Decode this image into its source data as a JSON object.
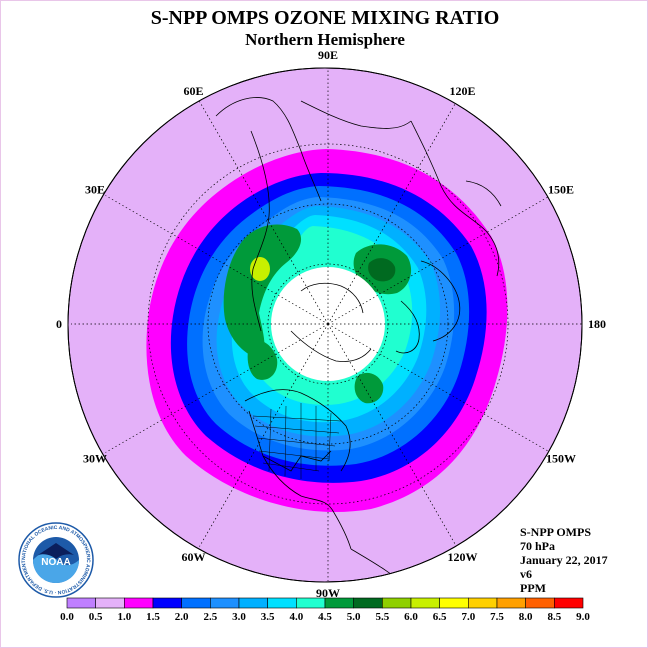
{
  "title": "S-NPP OMPS OZONE MIXING RATIO",
  "subtitle": "Northern Hemisphere",
  "longitude_labels": [
    {
      "lon": 90,
      "label": "90E"
    },
    {
      "lon": 60,
      "label": "60E"
    },
    {
      "lon": 30,
      "label": "30E"
    },
    {
      "lon": 0,
      "label": "0"
    },
    {
      "lon": -30,
      "label": "30W"
    },
    {
      "lon": -60,
      "label": "60W"
    },
    {
      "lon": -90,
      "label": "90W"
    },
    {
      "lon": -120,
      "label": "120W"
    },
    {
      "lon": -150,
      "label": "150W"
    },
    {
      "lon": 180,
      "label": "180"
    },
    {
      "lon": 150,
      "label": "150E"
    },
    {
      "lon": 120,
      "label": "120E"
    }
  ],
  "info": {
    "instrument": "S-NPP OMPS",
    "level": "70 hPa",
    "date": "January 22, 2017",
    "version": "v6",
    "units": "PPM"
  },
  "logo": {
    "text": "NOAA",
    "ring_text": "NATIONAL OCEANIC AND ATMOSPHERIC ADMINISTRATION · U.S. DEPARTMENT OF COMMERCE"
  },
  "colorbar": {
    "ticks": [
      "0.0",
      "0.5",
      "1.0",
      "1.5",
      "2.0",
      "2.5",
      "3.0",
      "3.5",
      "4.0",
      "4.5",
      "5.0",
      "5.5",
      "6.0",
      "6.5",
      "7.0",
      "7.5",
      "8.0",
      "8.5",
      "9.0"
    ],
    "colors": [
      "#bf7fff",
      "#e4b1f9",
      "#ff00ff",
      "#0000ff",
      "#0070ff",
      "#1e90ff",
      "#00b0ff",
      "#00e0ff",
      "#20ffd0",
      "#009a3a",
      "#006a20",
      "#8fd000",
      "#c8f000",
      "#ffff00",
      "#ffd000",
      "#ffa000",
      "#ff6000",
      "#ff0000",
      "#8b5a3c"
    ]
  },
  "map_colors": {
    "background": "#e4b1f9",
    "magenta": "#ff00ff",
    "blue": "#0000ff",
    "blue2": "#0070ff",
    "blue3": "#1e90ff",
    "cyan": "#00b0ff",
    "cyan2": "#00e0ff",
    "teal": "#20ffd0",
    "green": "#009a3a",
    "darkgreen": "#006a20",
    "yellowgreen": "#c8f000",
    "polar_cap": "#ffffff"
  }
}
